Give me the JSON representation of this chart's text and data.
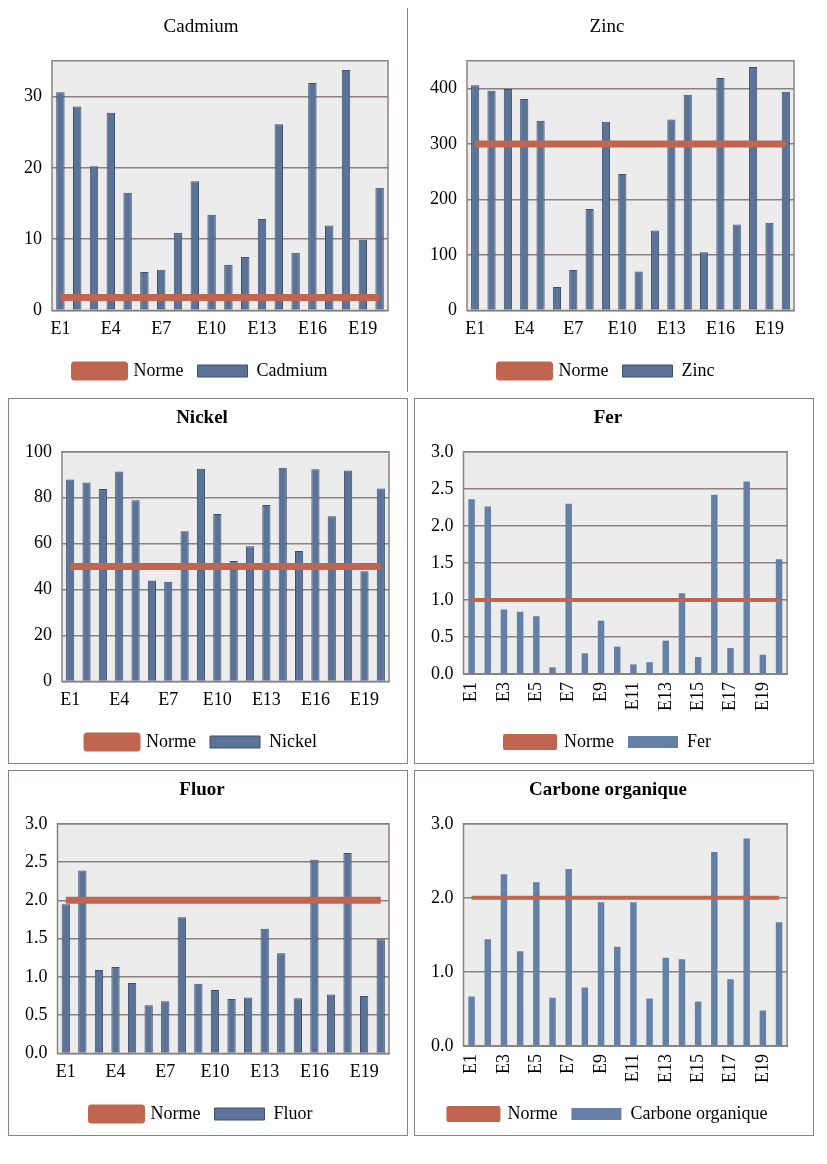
{
  "chart_data": [
    {
      "type": "bar",
      "title": "Cadmium",
      "categories": [
        "E1",
        null,
        null,
        "E4",
        null,
        null,
        "E7",
        null,
        null,
        "E10",
        null,
        null,
        "E13",
        null,
        null,
        "E16",
        null,
        null,
        "E19",
        null
      ],
      "ylim": [
        0,
        35
      ],
      "yticks": [
        0,
        10,
        20,
        30
      ],
      "grid": "y",
      "legend": "bottom",
      "marker": "none",
      "series": [
        {
          "name": "Cadmium",
          "color": "#5b7396",
          "values": [
            30.6,
            28.6,
            20.2,
            27.7,
            16.5,
            5.4,
            5.7,
            10.9,
            18.1,
            13.4,
            6.4,
            7.5,
            12.8,
            26.1,
            8.1,
            31.9,
            11.9,
            33.7,
            9.9,
            17.2
          ]
        },
        {
          "name": "Norme",
          "type": "line",
          "color": "#c0654f",
          "values": [
            1.8,
            1.8,
            1.8,
            1.8,
            1.8,
            1.8,
            1.8,
            1.8,
            1.8,
            1.8,
            1.8,
            1.8,
            1.8,
            1.8,
            1.8,
            1.8,
            1.8,
            1.8,
            1.8,
            1.8
          ]
        }
      ]
    },
    {
      "type": "bar",
      "title": "Zinc",
      "categories": [
        "E1",
        null,
        null,
        "E4",
        null,
        null,
        "E7",
        null,
        null,
        "E10",
        null,
        null,
        "E13",
        null,
        null,
        "E16",
        null,
        null,
        "E19",
        null
      ],
      "ylim": [
        0,
        450
      ],
      "yticks": [
        0,
        100,
        200,
        300,
        400
      ],
      "grid": "y",
      "legend": "bottom",
      "marker": "none",
      "series": [
        {
          "name": "Zinc",
          "color": "#5b7396",
          "values": [
            406,
            396,
            399,
            381,
            342,
            42,
            73,
            183,
            340,
            246,
            70,
            144,
            344,
            389,
            105,
            419,
            155,
            439,
            158,
            394
          ]
        },
        {
          "name": "Norme",
          "type": "line",
          "color": "#c0654f",
          "values": [
            300,
            300,
            300,
            300,
            300,
            300,
            300,
            300,
            300,
            300,
            300,
            300,
            300,
            300,
            300,
            300,
            300,
            300,
            300,
            300
          ]
        }
      ]
    },
    {
      "type": "bar",
      "title": "Nickel",
      "categories": [
        "E1",
        null,
        null,
        "E4",
        null,
        null,
        "E7",
        null,
        null,
        "E10",
        null,
        null,
        "E13",
        null,
        null,
        "E16",
        null,
        null,
        "E19",
        null
      ],
      "ylim": [
        0,
        100
      ],
      "yticks": [
        0,
        20,
        40,
        60,
        80,
        100
      ],
      "grid": "y",
      "legend": "bottom",
      "marker": "none",
      "series": [
        {
          "name": "Nickel",
          "color": "#5b7396",
          "values": [
            87.9,
            86.6,
            83.8,
            91.4,
            78.9,
            43.9,
            43.4,
            65.4,
            92.6,
            72.9,
            52.4,
            58.9,
            76.8,
            93.0,
            56.8,
            92.4,
            71.9,
            91.9,
            48,
            84.0
          ]
        },
        {
          "name": "Norme",
          "type": "line",
          "color": "#c0654f",
          "values": [
            50,
            50,
            50,
            50,
            50,
            50,
            50,
            50,
            50,
            50,
            50,
            50,
            50,
            50,
            50,
            50,
            50,
            50,
            50,
            50
          ]
        }
      ]
    },
    {
      "type": "bar",
      "title": "Fer",
      "categories": [
        "E1",
        null,
        "E3",
        null,
        "E5",
        null,
        "E7",
        null,
        "E9",
        null,
        "E11",
        null,
        "E13",
        null,
        "E15",
        null,
        "E17",
        null,
        "E19",
        null
      ],
      "ylim": [
        0,
        3
      ],
      "yticks": [
        {
          "value": 0,
          "label": "0.0"
        },
        {
          "value": 0.5,
          "label": "0.5"
        },
        {
          "value": 1,
          "label": "1.0"
        },
        {
          "value": 1.5,
          "label": "1.5"
        },
        {
          "value": 2,
          "label": "2.0"
        },
        {
          "value": 2.5,
          "label": "2.5"
        },
        {
          "value": 3,
          "label": "3.0"
        }
      ],
      "grid": "y",
      "legend": "bottom",
      "marker": "none",
      "series": [
        {
          "name": "Fer",
          "color": "#6580a6",
          "values": [
            2.36,
            2.26,
            0.87,
            0.84,
            0.78,
            0.09,
            2.3,
            0.28,
            0.72,
            0.37,
            0.13,
            0.16,
            0.45,
            1.09,
            0.23,
            2.42,
            0.35,
            2.6,
            0.26,
            1.55
          ]
        },
        {
          "name": "Norme",
          "type": "line",
          "color": "#c0654f",
          "values": [
            1,
            1,
            1,
            1,
            1,
            1,
            1,
            1,
            1,
            1,
            1,
            1,
            1,
            1,
            1,
            1,
            1,
            1,
            1,
            1
          ]
        }
      ]
    },
    {
      "type": "bar",
      "title": "Fluor",
      "categories": [
        "E1",
        null,
        null,
        "E4",
        null,
        null,
        "E7",
        null,
        null,
        "E10",
        null,
        null,
        "E13",
        null,
        null,
        "E16",
        null,
        null,
        "E19",
        null
      ],
      "ylim": [
        0,
        3
      ],
      "yticks": [
        {
          "value": 0,
          "label": "0.0"
        },
        {
          "value": 0.5,
          "label": "0.5"
        },
        {
          "value": 1,
          "label": "1.0"
        },
        {
          "value": 1.5,
          "label": "1.5"
        },
        {
          "value": 2,
          "label": "2.0"
        },
        {
          "value": 2.5,
          "label": "2.5"
        },
        {
          "value": 3,
          "label": "3.0"
        }
      ],
      "grid": "y",
      "legend": "bottom",
      "marker": "none",
      "series": [
        {
          "name": "Fluor",
          "color": "#5b7396",
          "values": [
            1.95,
            2.39,
            1.09,
            1.13,
            0.92,
            0.63,
            0.68,
            1.78,
            0.91,
            0.83,
            0.71,
            0.73,
            1.63,
            1.31,
            0.72,
            2.53,
            0.77,
            2.62,
            0.75,
            1.49
          ]
        },
        {
          "name": "Norme",
          "type": "line",
          "color": "#c0654f",
          "values": [
            2,
            2,
            2,
            2,
            2,
            2,
            2,
            2,
            2,
            2,
            2,
            2,
            2,
            2,
            2,
            2,
            2,
            2,
            2,
            2
          ]
        }
      ]
    },
    {
      "type": "bar",
      "title": "Carbone organique",
      "categories": [
        "E1",
        null,
        "E3",
        null,
        "E5",
        null,
        "E7",
        null,
        "E9",
        null,
        "E11",
        null,
        "E13",
        null,
        "E15",
        null,
        "E17",
        null,
        "E19",
        null
      ],
      "ylim": [
        0,
        3
      ],
      "yticks": [
        {
          "value": 0,
          "label": "0.0"
        },
        {
          "value": 1,
          "label": "1.0"
        },
        {
          "value": 2,
          "label": "2.0"
        },
        {
          "value": 3,
          "label": "3.0"
        }
      ],
      "grid": "y",
      "legend": "bottom",
      "marker": "none",
      "series": [
        {
          "name": "Carbone organique",
          "color": "#6580a6",
          "values": [
            0.67,
            1.44,
            2.32,
            1.28,
            2.21,
            0.65,
            2.39,
            0.79,
            1.94,
            1.34,
            1.94,
            0.64,
            1.19,
            1.17,
            0.6,
            2.62,
            0.9,
            2.8,
            0.48,
            1.67
          ]
        },
        {
          "name": "Norme",
          "type": "line",
          "color": "#c0654f",
          "values": [
            2,
            2,
            2,
            2,
            2,
            2,
            2,
            2,
            2,
            2,
            2,
            2,
            2,
            2,
            2,
            2,
            2,
            2,
            2,
            2
          ]
        }
      ]
    }
  ]
}
